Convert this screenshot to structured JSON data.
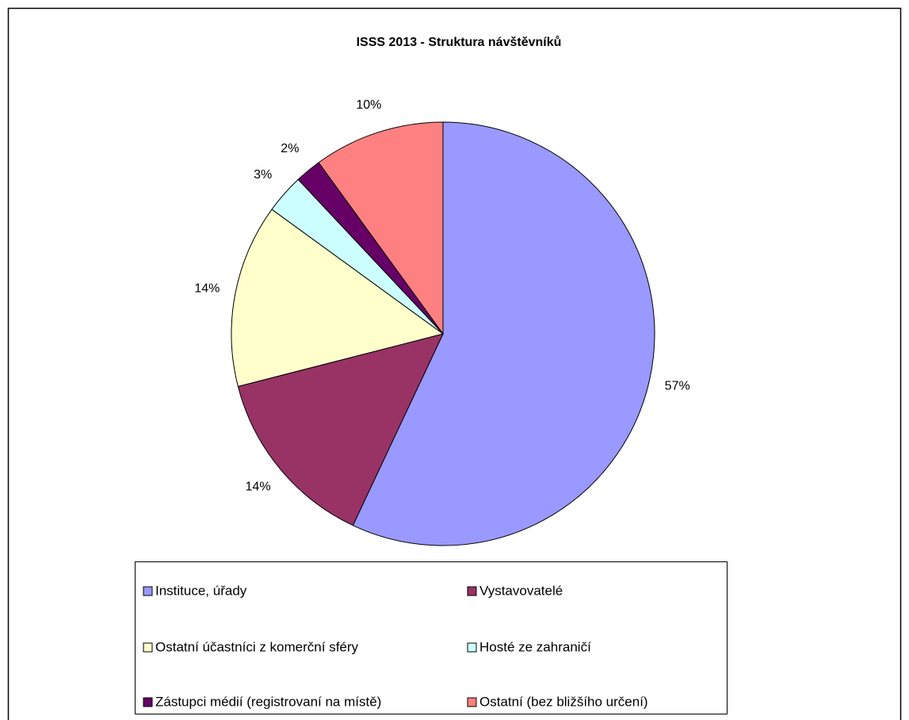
{
  "chart_data": {
    "type": "pie",
    "title": "ISSS 2013 - Struktura návštěvníků",
    "categories": [
      "Instituce, úřady",
      "Vystavovatelé",
      "Ostatní účastníci z komerční sféry",
      "Hosté ze zahraničí",
      "Zástupci médií (registrovaní na místě)",
      "Ostatní (bez bližšího určení)"
    ],
    "values": [
      57,
      14,
      14,
      3,
      2,
      10
    ],
    "value_labels": [
      "57%",
      "14%",
      "14%",
      "3%",
      "2%",
      "10%"
    ],
    "colors": [
      "#9999ff",
      "#993366",
      "#ffffcc",
      "#ccffff",
      "#660066",
      "#ff8080"
    ]
  }
}
